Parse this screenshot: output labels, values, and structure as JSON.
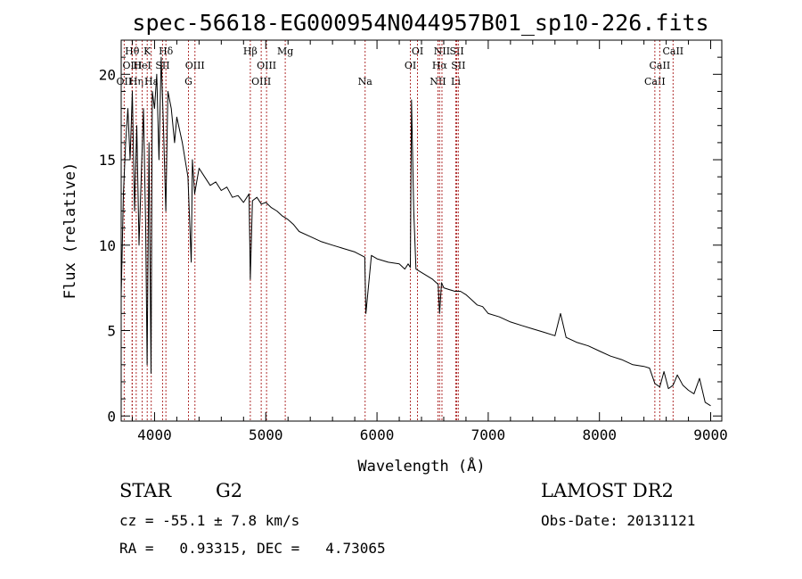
{
  "chart_data": {
    "type": "line",
    "title": "spec-56618-EG000954N044957B01_sp10-226.fits",
    "xlabel": "Wavelength (Å)",
    "ylabel": "Flux (relative)",
    "xlim": [
      3700,
      9100
    ],
    "ylim": [
      -0.3,
      22
    ],
    "x_ticks": [
      4000,
      5000,
      6000,
      7000,
      8000,
      9000
    ],
    "y_ticks": [
      0,
      5,
      10,
      15,
      20
    ],
    "grid": false,
    "series": [
      {
        "x": [
          3700,
          3720,
          3740,
          3760,
          3780,
          3800,
          3820,
          3840,
          3860,
          3880,
          3900,
          3920,
          3933,
          3950,
          3968,
          3980,
          4000,
          4020,
          4040,
          4060,
          4080,
          4101,
          4120,
          4150,
          4180,
          4200,
          4250,
          4300,
          4330,
          4340,
          4360,
          4400,
          4450,
          4500,
          4550,
          4600,
          4650,
          4700,
          4750,
          4800,
          4850,
          4861,
          4880,
          4920,
          4960,
          5000,
          5050,
          5100,
          5150,
          5200,
          5250,
          5300,
          5400,
          5500,
          5600,
          5700,
          5800,
          5890,
          5900,
          5950,
          6000,
          6100,
          6200,
          6250,
          6280,
          6300,
          6310,
          6330,
          6350,
          6400,
          6450,
          6500,
          6550,
          6563,
          6580,
          6600,
          6650,
          6700,
          6750,
          6800,
          6850,
          6900,
          6950,
          7000,
          7100,
          7200,
          7300,
          7400,
          7500,
          7600,
          7650,
          7700,
          7800,
          7900,
          8000,
          8100,
          8200,
          8300,
          8400,
          8450,
          8498,
          8542,
          8580,
          8620,
          8662,
          8700,
          8750,
          8800,
          8850,
          8900,
          8950,
          9000
        ],
        "y": [
          7,
          13,
          16,
          18,
          15,
          19,
          12,
          17,
          10,
          14,
          18,
          11,
          3,
          16,
          2.5,
          19,
          18,
          20,
          15,
          21,
          17,
          12,
          19,
          18,
          16,
          17.5,
          16,
          14,
          9,
          15,
          13,
          14.5,
          14,
          13.5,
          13.7,
          13.2,
          13.4,
          12.8,
          12.9,
          12.5,
          13,
          8,
          12.6,
          12.8,
          12.4,
          12.5,
          12.2,
          12,
          11.7,
          11.5,
          11.2,
          10.8,
          10.5,
          10.2,
          10,
          9.8,
          9.6,
          9.3,
          6,
          9.4,
          9.2,
          9,
          8.9,
          8.6,
          8.9,
          8.7,
          18.5,
          12,
          8.6,
          8.4,
          8.2,
          8,
          7.7,
          6,
          7.8,
          7.5,
          7.4,
          7.3,
          7.3,
          7.1,
          6.8,
          6.5,
          6.4,
          6,
          5.8,
          5.5,
          5.3,
          5.1,
          4.9,
          4.7,
          6,
          4.6,
          4.3,
          4.1,
          3.8,
          3.5,
          3.3,
          3,
          2.9,
          2.8,
          1.9,
          1.7,
          2.6,
          1.6,
          1.8,
          2.4,
          1.8,
          1.5,
          1.3,
          2.2,
          0.8,
          0.6
        ]
      }
    ],
    "lines": [
      {
        "label": "OII",
        "x": 3727,
        "row": 2
      },
      {
        "label": "Hθ",
        "x": 3798,
        "row": 0
      },
      {
        "label": "OIII",
        "x": 3800,
        "row": 1
      },
      {
        "label": "Hη",
        "x": 3835,
        "row": 2
      },
      {
        "label": "HeI",
        "x": 3889,
        "row": 1
      },
      {
        "label": "K",
        "x": 3934,
        "row": 0
      },
      {
        "label": "Hε",
        "x": 3970,
        "row": 2
      },
      {
        "label": "SII",
        "x": 4072,
        "row": 1
      },
      {
        "label": "Hδ",
        "x": 4102,
        "row": 0
      },
      {
        "label": "G",
        "x": 4305,
        "row": 2
      },
      {
        "label": "OIII",
        "x": 4363,
        "row": 1
      },
      {
        "label": "Hβ",
        "x": 4861,
        "row": 0
      },
      {
        "label": "OIII",
        "x": 4959,
        "row": 2
      },
      {
        "label": "OIII",
        "x": 5007,
        "row": 1
      },
      {
        "label": "Mg",
        "x": 5175,
        "row": 0
      },
      {
        "label": "Na",
        "x": 5893,
        "row": 2
      },
      {
        "label": "OI",
        "x": 6300,
        "row": 1
      },
      {
        "label": "OI",
        "x": 6364,
        "row": 0
      },
      {
        "label": "NII",
        "x": 6548,
        "row": 2
      },
      {
        "label": "Hα",
        "x": 6563,
        "row": 1
      },
      {
        "label": "NII",
        "x": 6584,
        "row": 0
      },
      {
        "label": "Li",
        "x": 6708,
        "row": 2
      },
      {
        "label": "SII",
        "x": 6717,
        "row": 0
      },
      {
        "label": "SII",
        "x": 6731,
        "row": 1
      },
      {
        "label": "CaII",
        "x": 8498,
        "row": 2
      },
      {
        "label": "CaII",
        "x": 8542,
        "row": 1
      },
      {
        "label": "CaII",
        "x": 8662,
        "row": 0
      }
    ]
  },
  "info": {
    "class": "STAR",
    "subclass": "G2",
    "survey": "LAMOST DR2",
    "cz": "cz = -55.1 ± 7.8 km/s",
    "obs_date": "Obs-Date: 20131121",
    "coords": "RA =   0.93315, DEC =   4.73065"
  }
}
